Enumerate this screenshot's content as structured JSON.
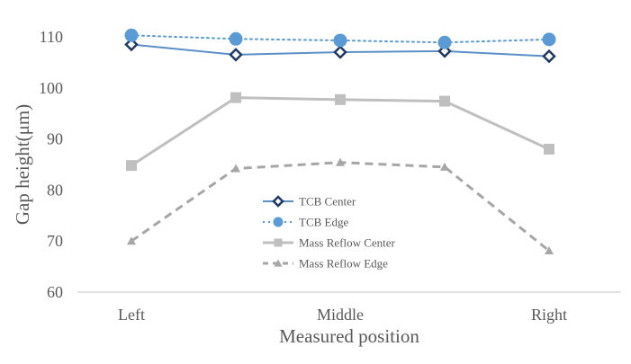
{
  "chart_data": {
    "type": "line",
    "xlabel": "Measured position",
    "ylabel": "Gap height(μm)",
    "categories": [
      "Left",
      "",
      "Middle",
      "",
      "Right"
    ],
    "ylim": [
      60,
      110
    ],
    "yticks": [
      60,
      70,
      80,
      90,
      100,
      110
    ],
    "grid": false,
    "legend_position": "center",
    "series": [
      {
        "name": "TCB Center",
        "values": [
          108.5,
          106.5,
          107.0,
          107.2,
          106.2
        ],
        "color": "#5b8fc7",
        "marker_color": "#1f3864",
        "line_style": "solid",
        "marker": "diamond-open"
      },
      {
        "name": "TCB Edge",
        "values": [
          110.3,
          109.6,
          109.3,
          108.9,
          109.5
        ],
        "color": "#5b9bd5",
        "marker_color": "#5b9bd5",
        "line_style": "dotted",
        "marker": "circle"
      },
      {
        "name": "Mass Reflow Center",
        "values": [
          84.8,
          98.1,
          97.7,
          97.4,
          88.0
        ],
        "color": "#bfbfbf",
        "marker_color": "#bfbfbf",
        "line_style": "solid",
        "marker": "square"
      },
      {
        "name": "Mass Reflow Edge",
        "values": [
          70.0,
          84.2,
          85.4,
          84.5,
          68.1
        ],
        "color": "#a6a6a6",
        "marker_color": "#a6a6a6",
        "line_style": "dashed",
        "marker": "triangle"
      }
    ]
  }
}
